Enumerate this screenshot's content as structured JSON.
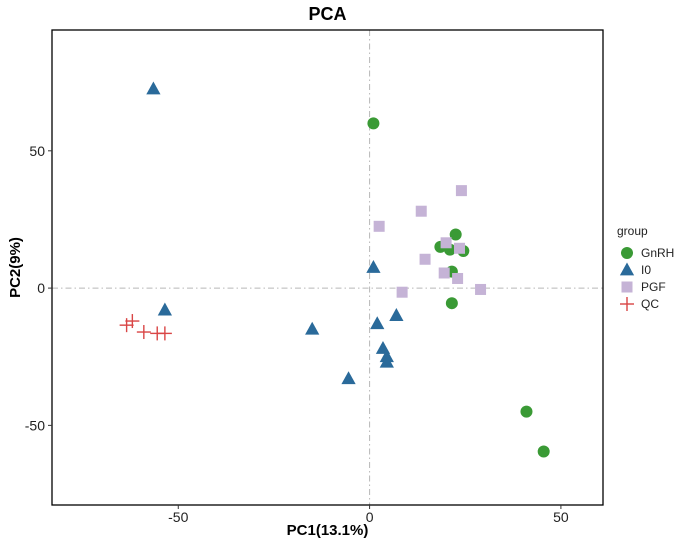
{
  "chart_data": {
    "type": "scatter",
    "title": "PCA",
    "xlabel": "PC1(13.1%)",
    "ylabel": "PC2(9%)",
    "xlim": [
      -83,
      61
    ],
    "ylim": [
      -79,
      94
    ],
    "xticks": [
      -50,
      0,
      50
    ],
    "yticks": [
      -50,
      0,
      50
    ],
    "reference_lines": {
      "x": 0,
      "y": 0
    },
    "legend": {
      "title": "group",
      "position": "right"
    },
    "series": [
      {
        "name": "GnRH",
        "marker": "circle",
        "color": "#3a9a35",
        "points": [
          [
            1,
            60
          ],
          [
            22.5,
            19.5
          ],
          [
            18.5,
            15
          ],
          [
            21,
            14
          ],
          [
            24.5,
            13.5
          ],
          [
            21.5,
            6
          ],
          [
            21.5,
            -5.5
          ],
          [
            41,
            -45
          ],
          [
            45.5,
            -59.5
          ]
        ]
      },
      {
        "name": "I0",
        "marker": "triangle",
        "color": "#2a6a9a",
        "points": [
          [
            -56.5,
            72.5
          ],
          [
            1,
            7.5
          ],
          [
            -53.5,
            -8
          ],
          [
            -15,
            -15
          ],
          [
            2,
            -13
          ],
          [
            7,
            -10
          ],
          [
            3.5,
            -22
          ],
          [
            4.5,
            -25
          ],
          [
            4.5,
            -27
          ],
          [
            -5.5,
            -33
          ]
        ]
      },
      {
        "name": "PGF",
        "marker": "square",
        "color": "#c5b3d6",
        "points": [
          [
            24,
            35.5
          ],
          [
            13.5,
            28
          ],
          [
            2.5,
            22.5
          ],
          [
            20,
            16.5
          ],
          [
            23.5,
            14.5
          ],
          [
            14.5,
            10.5
          ],
          [
            19.5,
            5.5
          ],
          [
            23,
            3.5
          ],
          [
            8.5,
            -1.5
          ],
          [
            29,
            -0.5
          ]
        ]
      },
      {
        "name": "QC",
        "marker": "cross",
        "color": "#d94545",
        "points": [
          [
            -63.5,
            -13.5
          ],
          [
            -62,
            -12
          ],
          [
            -59,
            -16
          ],
          [
            -55.5,
            -16.5
          ],
          [
            -53.5,
            -16.5
          ]
        ]
      }
    ]
  }
}
